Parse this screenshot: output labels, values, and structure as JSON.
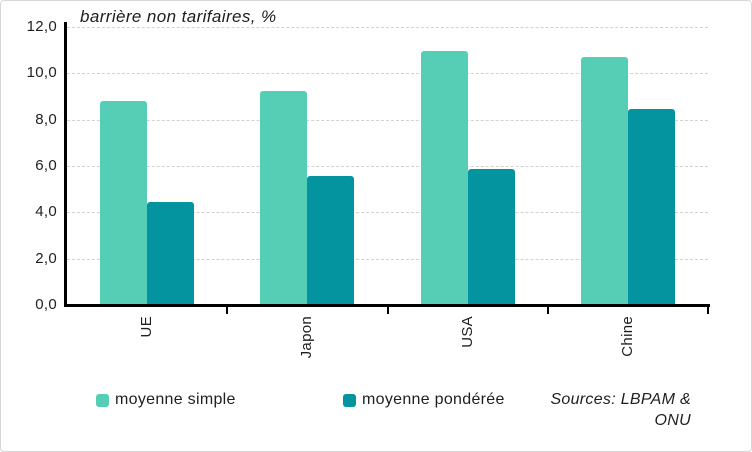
{
  "chart_data": {
    "type": "bar",
    "title": "barrière non tarifaires, %",
    "categories": [
      "UE",
      "Japon",
      "USA",
      "Chine"
    ],
    "series": [
      {
        "name": "moyenne simple",
        "color": "#55CEB5",
        "values": [
          8.8,
          9.25,
          10.95,
          10.7
        ]
      },
      {
        "name": "moyenne pondérée",
        "color": "#0394A0",
        "values": [
          4.45,
          5.55,
          5.85,
          8.45
        ]
      }
    ],
    "ylim": [
      0,
      12
    ],
    "ytick_step": 2,
    "ytick_labels": [
      "0,0",
      "2,0",
      "4,0",
      "6,0",
      "8,0",
      "10,0",
      "12,0"
    ],
    "grid": true,
    "legend_position": "bottom",
    "axis_color": "#000000",
    "gridline_color": "#d2d2d2"
  },
  "source_note": {
    "lines": [
      "Sources: LBPAM &",
      "ONU"
    ]
  }
}
